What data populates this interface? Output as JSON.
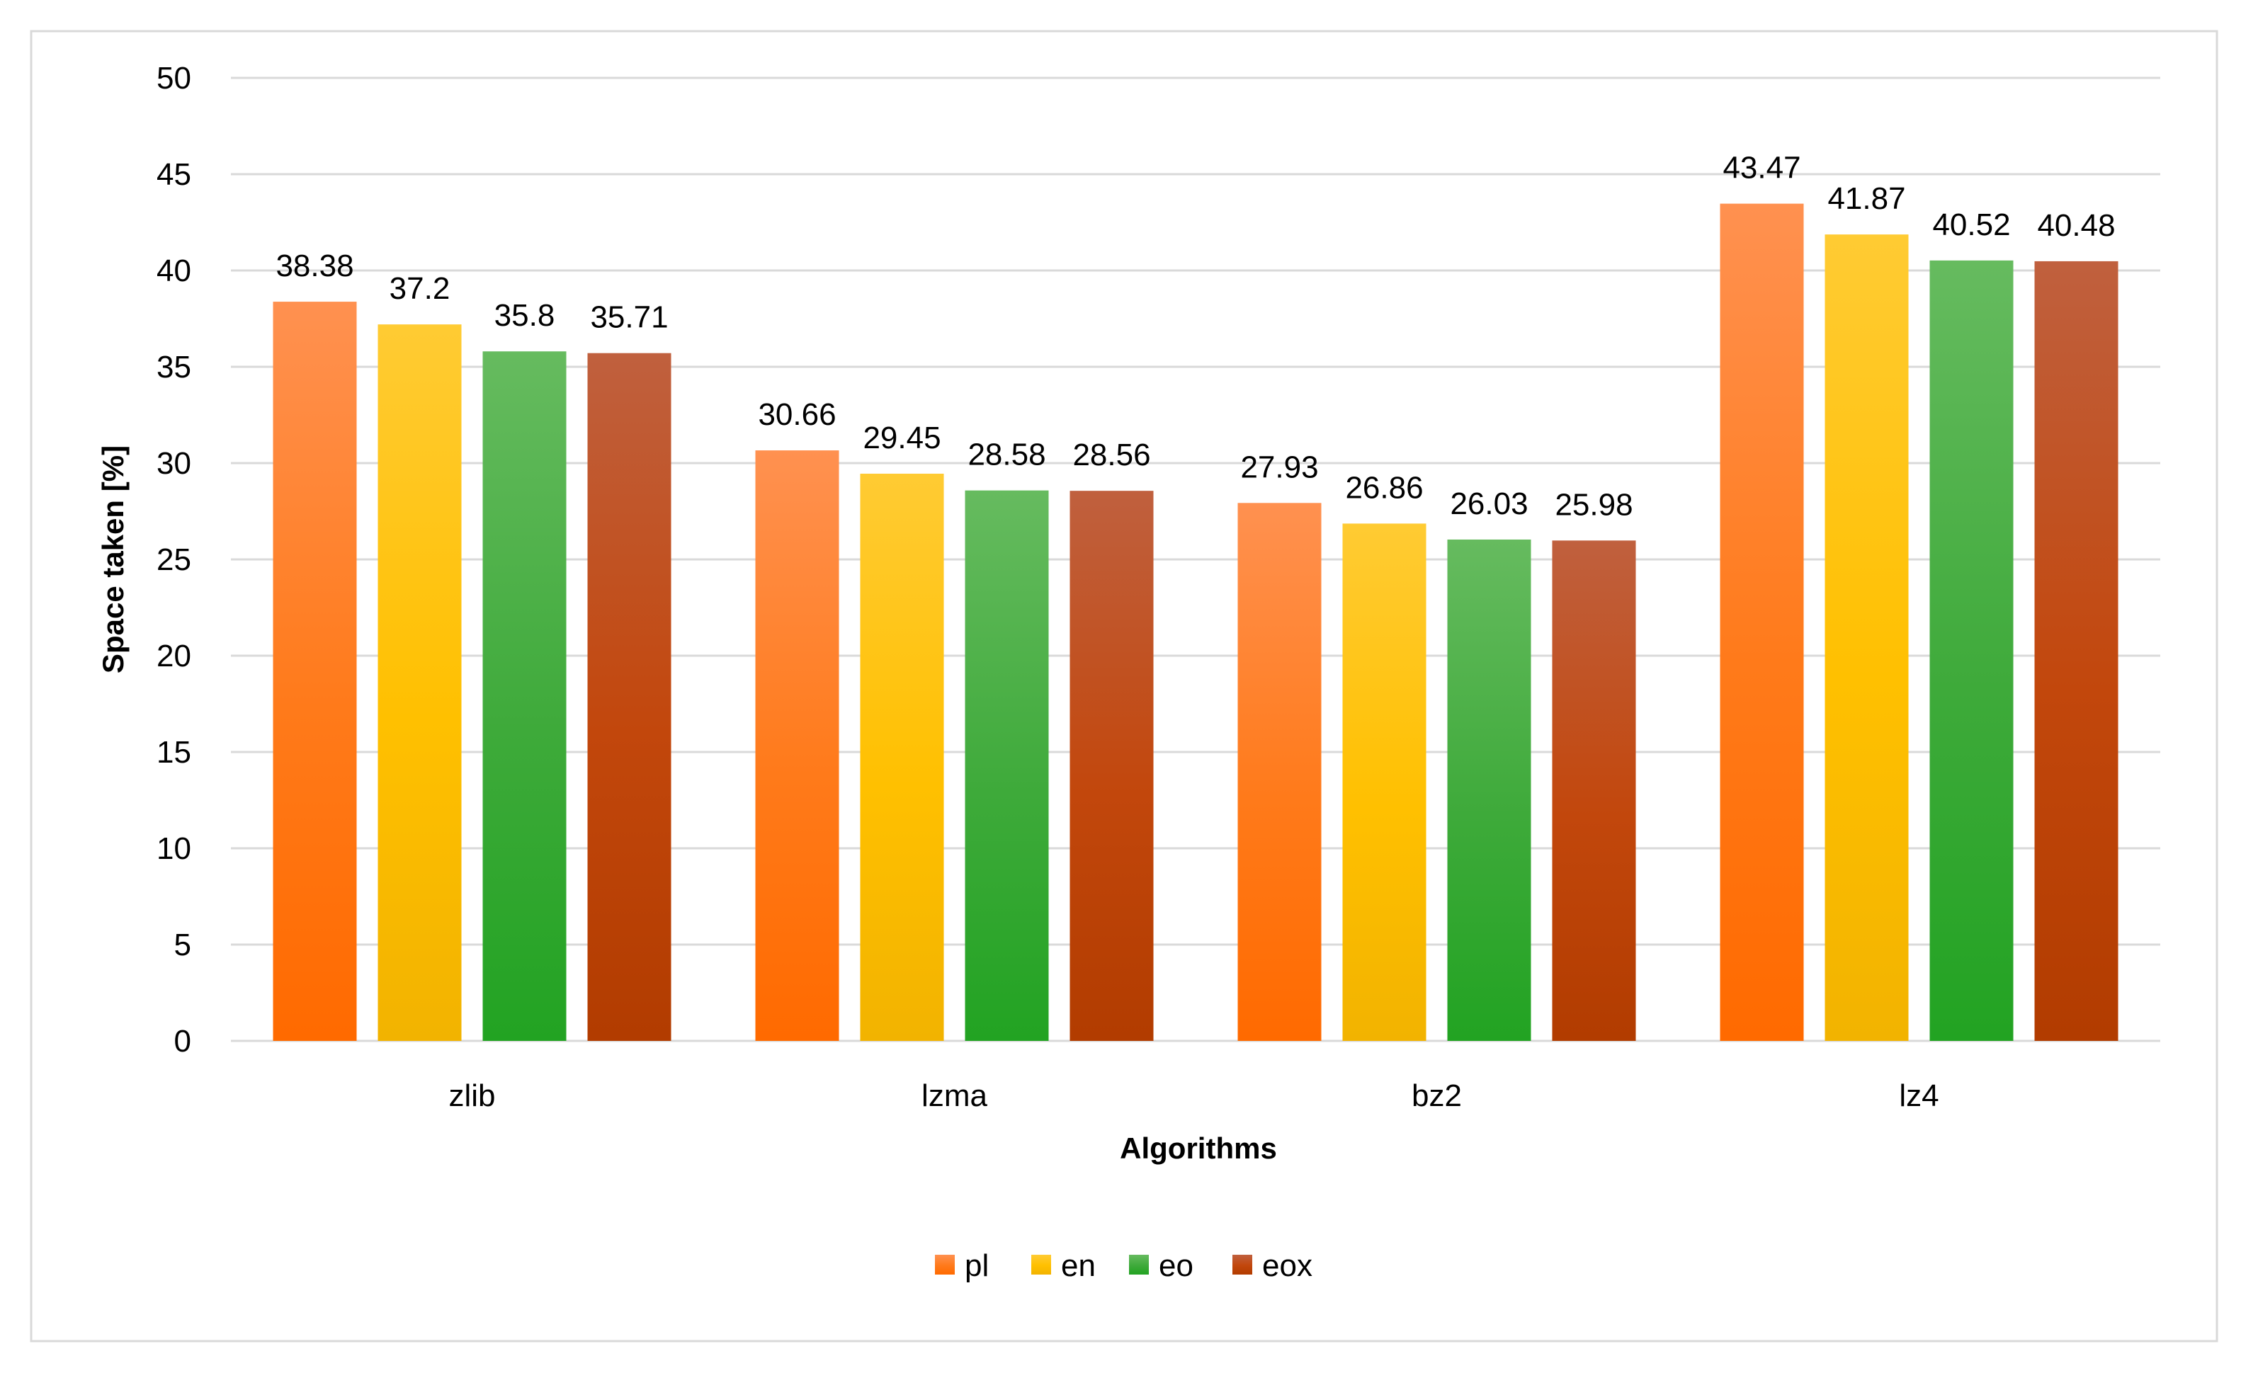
{
  "chart_data": {
    "type": "bar",
    "title": "",
    "xlabel": "Algorithms",
    "ylabel": "Space taken [%]",
    "ylim": [
      0,
      50
    ],
    "ytick_step": 5,
    "grid": true,
    "legend_position": "bottom-center",
    "categories": [
      "zlib",
      "lzma",
      "bz2",
      "lz4"
    ],
    "series": [
      {
        "name": "pl",
        "color": "#FF7A1A",
        "color_light": "#FF9150",
        "color_dark": "#FF6A00",
        "values": [
          38.38,
          30.66,
          27.93,
          43.47
        ]
      },
      {
        "name": "en",
        "color": "#FFC000",
        "color_light": "#FFCB33",
        "color_dark": "#F2B300",
        "values": [
          37.2,
          29.45,
          26.86,
          41.87
        ]
      },
      {
        "name": "eo",
        "color": "#3EAA3A",
        "color_light": "#66BB5F",
        "color_dark": "#22A322",
        "values": [
          35.8,
          28.58,
          26.03,
          40.52
        ]
      },
      {
        "name": "eox",
        "color": "#C2470C",
        "color_light": "#C0603E",
        "color_dark": "#B23C00",
        "values": [
          35.71,
          28.56,
          25.98,
          40.48
        ]
      }
    ]
  }
}
